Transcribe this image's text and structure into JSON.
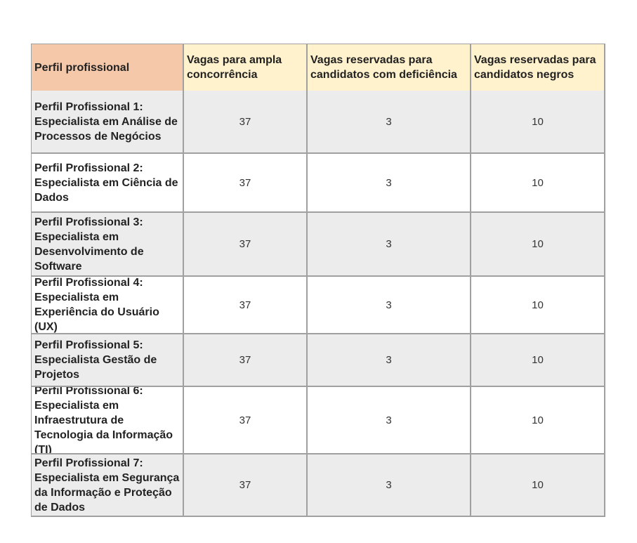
{
  "table": {
    "headers": [
      "Perfil profissional",
      "Vagas para ampla concorrência",
      "Vagas reservadas para candidatos com deficiência",
      "Vagas reservadas para candidatos negros"
    ],
    "rows": [
      {
        "perfil": "Perfil Profissional 1: Especialista em Análise de Processos de Negócios",
        "ampla": "37",
        "deficiencia": "3",
        "negros": "10"
      },
      {
        "perfil": "Perfil Profissional 2: Especialista em Ciência de Dados",
        "ampla": "37",
        "deficiencia": "3",
        "negros": "10"
      },
      {
        "perfil": "Perfil Profissional 3: Especialista em Desenvolvimento de Software",
        "ampla": "37",
        "deficiencia": "3",
        "negros": "10"
      },
      {
        "perfil": "Perfil Profissional 4: Especialista em Experiência do Usuário (UX)",
        "ampla": "37",
        "deficiencia": "3",
        "negros": "10"
      },
      {
        "perfil": "Perfil Profissional 5: Especialista Gestão de Projetos",
        "ampla": "37",
        "deficiencia": "3",
        "negros": "10"
      },
      {
        "perfil": "Perfil Profissional 6: Especialista em Infraestrutura de Tecnologia da Informação (TI)",
        "ampla": "37",
        "deficiencia": "3",
        "negros": "10"
      },
      {
        "perfil": "Perfil Profissional 7: Especialista em Segurança da Informação e Proteção de Dados",
        "ampla": "37",
        "deficiencia": "3",
        "negros": "10"
      }
    ]
  },
  "colors": {
    "header_first": "#f6c8aa",
    "header_other": "#fff2cc",
    "row_alt": "#ececec",
    "border": "#a0a0a0"
  }
}
